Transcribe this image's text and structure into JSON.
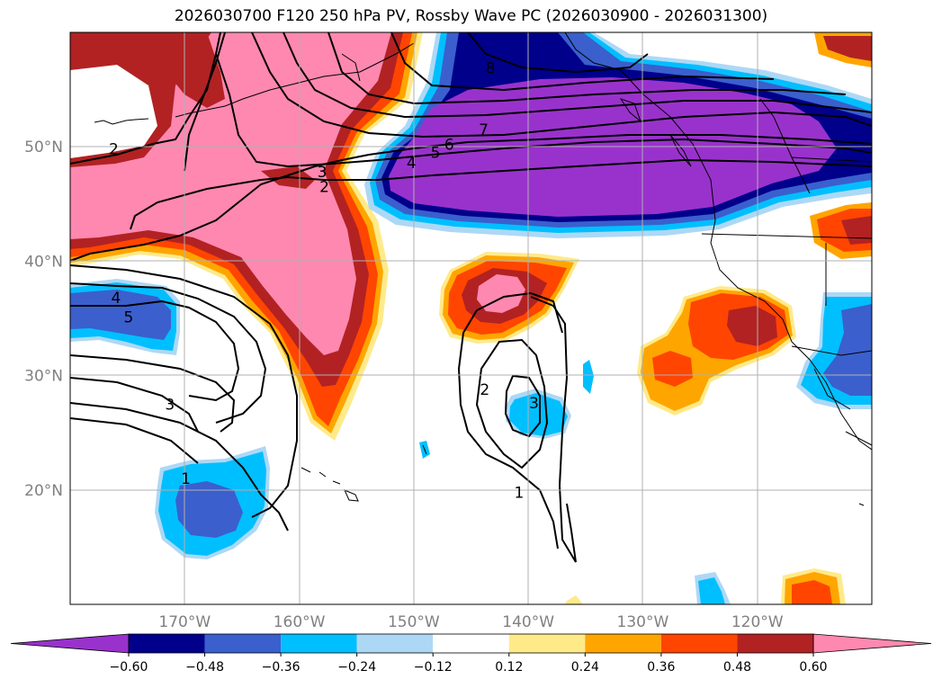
{
  "title": "2026030700 F120 250 hPa PV, Rossby Wave PC (2026030900 - 2026031300)",
  "map": {
    "lat_labels": [
      "50°N",
      "40°N",
      "30°N",
      "20°N"
    ],
    "lon_labels": [
      "170°W",
      "160°W",
      "150°W",
      "140°W",
      "130°W",
      "120°W"
    ],
    "lat_range": [
      10,
      60
    ],
    "lon_range": [
      -180,
      -110
    ],
    "grid": true,
    "label_color": "#808080"
  },
  "colorbar": {
    "ticks": [
      "−0.60",
      "−0.48",
      "−0.36",
      "−0.24",
      "−0.12",
      "0.12",
      "0.24",
      "0.36",
      "0.48",
      "0.60"
    ],
    "colors": [
      "#9932cc",
      "#00008b",
      "#3b5fcd",
      "#00bfff",
      "#add8f5",
      "#ffffff",
      "#ffea8a",
      "#ffa500",
      "#ff4500",
      "#b22222",
      "#ff88b0"
    ],
    "extend": "both"
  },
  "contour_labels": [
    {
      "text": "2",
      "lon": -176.2,
      "lat": 49.8
    },
    {
      "text": "3",
      "lon": -158.0,
      "lat": 47.8
    },
    {
      "text": "2",
      "lon": -157.8,
      "lat": 46.5
    },
    {
      "text": "4",
      "lon": -150.2,
      "lat": 48.6
    },
    {
      "text": "5",
      "lon": -148.1,
      "lat": 49.5
    },
    {
      "text": "6",
      "lon": -146.9,
      "lat": 50.2
    },
    {
      "text": "7",
      "lon": -143.9,
      "lat": 51.5
    },
    {
      "text": "8",
      "lon": -143.3,
      "lat": 56.9
    },
    {
      "text": "4",
      "lon": -176.0,
      "lat": 36.8
    },
    {
      "text": "5",
      "lon": -174.9,
      "lat": 35.1
    },
    {
      "text": "3",
      "lon": -171.3,
      "lat": 27.5
    },
    {
      "text": "1",
      "lon": -169.9,
      "lat": 21.0
    },
    {
      "text": "2",
      "lon": -143.8,
      "lat": 28.8
    },
    {
      "text": "3",
      "lon": -139.5,
      "lat": 27.6
    },
    {
      "text": "1",
      "lon": -140.8,
      "lat": 19.8
    }
  ]
}
